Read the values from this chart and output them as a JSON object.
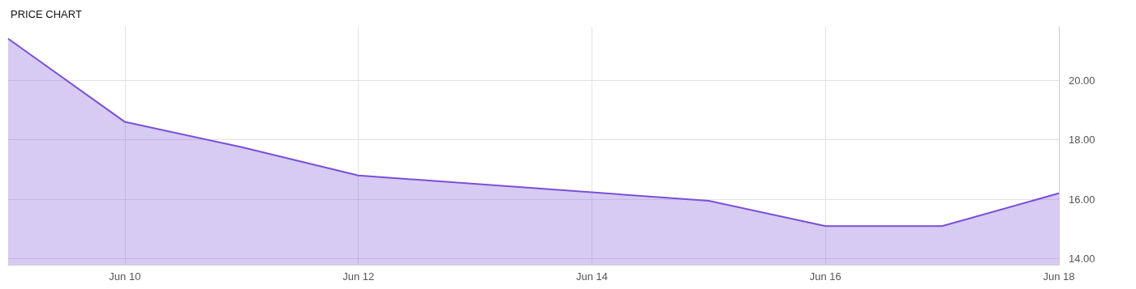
{
  "chart_data": {
    "type": "area",
    "title": "PRICE CHART",
    "x": [
      "--06-09",
      "--06-10",
      "--06-11",
      "--06-12",
      "--06-15",
      "--06-16",
      "--06-17",
      "--06-18"
    ],
    "series": [
      {
        "color": "#7b4fd8",
        "values": [
          21.4,
          18.6,
          17.75,
          16.8,
          15.95,
          15.1,
          15.1,
          16.2
        ]
      }
    ],
    "xlim": [
      "--06-09",
      "--06-18"
    ],
    "xticks": [
      {
        "value": "--06-10",
        "label": "Jun 10"
      },
      {
        "value": "--06-12",
        "label": "Jun 12"
      },
      {
        "value": "--06-14",
        "label": "Jun 14"
      },
      {
        "value": "--06-16",
        "label": "Jun 16"
      },
      {
        "value": "--06-18",
        "label": "Jun 18"
      }
    ],
    "ylim": [
      13.8,
      21.8
    ],
    "yticks": [
      {
        "value": 14,
        "label": "14.00"
      },
      {
        "value": 16,
        "label": "16.00"
      },
      {
        "value": 18,
        "label": "18.00"
      },
      {
        "value": 20,
        "label": "20.00"
      }
    ],
    "grid": true
  }
}
